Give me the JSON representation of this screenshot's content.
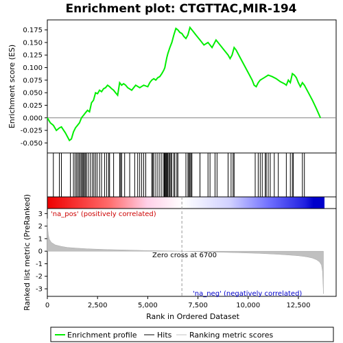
{
  "chart_data": {
    "type": "line",
    "title": "Enrichment plot: CTGTTAC,MIR-194",
    "xlabel": "Rank in Ordered Dataset",
    "xlim": [
      0,
      13800
    ],
    "x_ticks": [
      "0",
      "2,500",
      "5,000",
      "7,500",
      "10,000",
      "12,500"
    ],
    "top_panel": {
      "ylabel": "Enrichment score (ES)",
      "ylim": [
        -0.07,
        0.195
      ],
      "y_ticks": [
        "-0.050",
        "-0.025",
        "0.000",
        "0.025",
        "0.050",
        "0.075",
        "0.100",
        "0.125",
        "0.150",
        "0.175"
      ],
      "series": [
        {
          "name": "Enrichment profile",
          "color": "#00ee00",
          "x": [
            0,
            150,
            300,
            450,
            600,
            700,
            900,
            1100,
            1200,
            1300,
            1400,
            1500,
            1600,
            1700,
            1800,
            1900,
            2000,
            2100,
            2200,
            2300,
            2400,
            2500,
            2600,
            2700,
            2800,
            2900,
            3000,
            3100,
            3200,
            3300,
            3400,
            3500,
            3600,
            3700,
            3800,
            3900,
            4000,
            4200,
            4400,
            4600,
            4800,
            5000,
            5100,
            5200,
            5300,
            5400,
            5500,
            5600,
            5700,
            5800,
            5850,
            5900,
            5950,
            6000,
            6100,
            6200,
            6300,
            6400,
            6500,
            6600,
            6700,
            6800,
            6900,
            7000,
            7100,
            7200,
            7300,
            7400,
            7600,
            7800,
            8000,
            8200,
            8400,
            8600,
            8800,
            9000,
            9100,
            9200,
            9300,
            9400,
            9600,
            9800,
            10000,
            10200,
            10300,
            10400,
            10500,
            10600,
            10800,
            11000,
            11200,
            11400,
            11600,
            11800,
            11900,
            12000,
            12100,
            12200,
            12300,
            12400,
            12500,
            12600,
            12700,
            12800,
            13000,
            13200,
            13400,
            13600
          ],
          "y": [
            0.0,
            -0.01,
            -0.015,
            -0.025,
            -0.02,
            -0.018,
            -0.03,
            -0.045,
            -0.042,
            -0.028,
            -0.02,
            -0.015,
            -0.01,
            0.0,
            0.005,
            0.01,
            0.015,
            0.012,
            0.03,
            0.035,
            0.05,
            0.048,
            0.055,
            0.052,
            0.058,
            0.06,
            0.065,
            0.062,
            0.058,
            0.055,
            0.05,
            0.045,
            0.07,
            0.065,
            0.068,
            0.065,
            0.06,
            0.055,
            0.065,
            0.06,
            0.065,
            0.062,
            0.07,
            0.075,
            0.078,
            0.075,
            0.08,
            0.082,
            0.088,
            0.095,
            0.1,
            0.11,
            0.12,
            0.128,
            0.14,
            0.15,
            0.165,
            0.178,
            0.175,
            0.17,
            0.168,
            0.162,
            0.158,
            0.165,
            0.18,
            0.175,
            0.17,
            0.165,
            0.155,
            0.145,
            0.15,
            0.14,
            0.155,
            0.145,
            0.135,
            0.125,
            0.118,
            0.125,
            0.14,
            0.135,
            0.12,
            0.105,
            0.09,
            0.075,
            0.065,
            0.062,
            0.07,
            0.075,
            0.08,
            0.085,
            0.082,
            0.078,
            0.072,
            0.068,
            0.065,
            0.075,
            0.07,
            0.088,
            0.085,
            0.08,
            0.07,
            0.062,
            0.07,
            0.065,
            0.05,
            0.035,
            0.018,
            0.0
          ],
          "hits": [
            300,
            600,
            700,
            1150,
            1300,
            1380,
            1450,
            1520,
            1580,
            1640,
            1700,
            1750,
            1800,
            1850,
            1900,
            1960,
            2050,
            2150,
            2250,
            2320,
            2400,
            2480,
            2600,
            2700,
            2850,
            2950,
            3050,
            3100,
            3300,
            3600,
            3650,
            3700,
            3850,
            4100,
            4350,
            4500,
            4600,
            4700,
            4800,
            4900,
            5200,
            5250,
            5300,
            5400,
            5500,
            5600,
            5700,
            5800,
            5830,
            5860,
            5900,
            5930,
            5970,
            6000,
            6050,
            6100,
            6150,
            6200,
            6300,
            6350,
            6450,
            6500,
            6900,
            7000,
            7050,
            7100,
            7150,
            7200,
            7600,
            8000,
            8100,
            8350,
            8450,
            9000,
            9150,
            9250,
            9300,
            10350,
            10500,
            10600,
            10700,
            10850,
            10900,
            11000,
            11100,
            11300,
            11500,
            11900,
            12100,
            12200,
            12250,
            12700,
            12800
          ]
        }
      ]
    },
    "bottom_panel": {
      "ylabel": "Ranked list metric (PreRanked)",
      "ylim": [
        -3.6,
        3.4
      ],
      "y_ticks": [
        "-3",
        "-2",
        "-1",
        "0",
        "1",
        "2",
        "3"
      ],
      "series": [
        {
          "name": "Ranking metric scores",
          "color": "#c0c0c0",
          "x": [
            0,
            20,
            50,
            100,
            200,
            400,
            700,
            1000,
            1500,
            2000,
            3000,
            4000,
            5000,
            6000,
            6700,
            7500,
            8500,
            9500,
            10500,
            11500,
            12000,
            12500,
            12800,
            13000,
            13200,
            13400,
            13550,
            13650,
            13700,
            13750
          ],
          "y": [
            2.6,
            1.8,
            1.3,
            0.95,
            0.7,
            0.5,
            0.38,
            0.3,
            0.24,
            0.19,
            0.13,
            0.09,
            0.05,
            0.02,
            0.0,
            -0.04,
            -0.08,
            -0.12,
            -0.17,
            -0.25,
            -0.3,
            -0.36,
            -0.42,
            -0.48,
            -0.55,
            -0.68,
            -0.85,
            -1.1,
            -1.6,
            -3.4
          ]
        }
      ],
      "annotations": [
        "'na_pos' (positively correlated)",
        "Zero cross at 6700",
        "'na_neg' (negatively correlated)"
      ],
      "zero_cross": 6700
    },
    "legend": {
      "placement": "bottom",
      "entries": [
        {
          "label": "Enrichment profile",
          "color": "#00ee00"
        },
        {
          "label": "Hits",
          "color": "#000000"
        },
        {
          "label": "Ranking metric scores",
          "color": "#c0c0c0"
        }
      ]
    },
    "colors": {
      "positive_text": "#cc0000",
      "negative_text": "#0000cc",
      "heat_positive": "#ee0000",
      "heat_negative": "#0000dd"
    }
  }
}
